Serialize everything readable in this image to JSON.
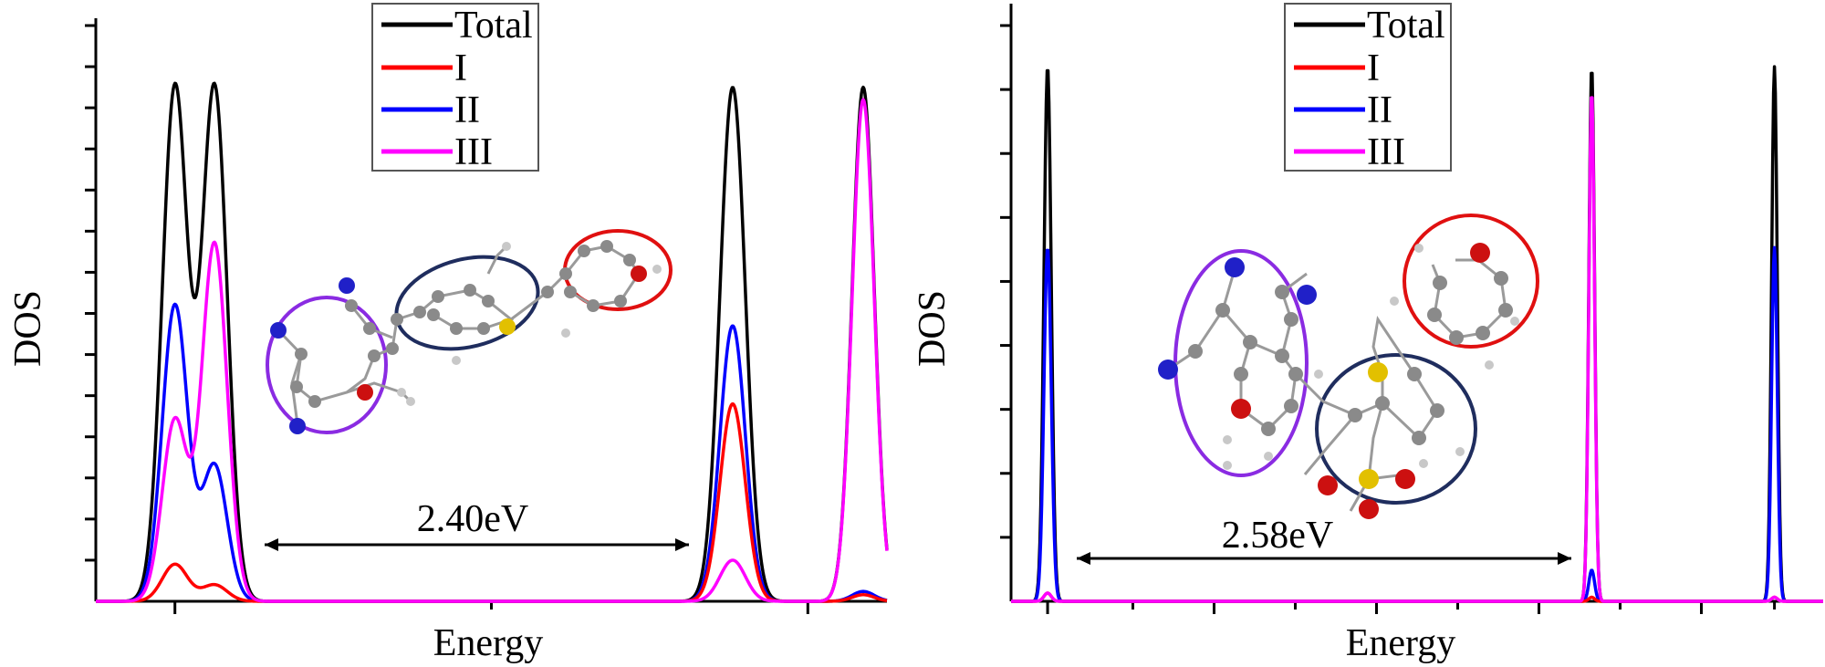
{
  "chart_data": [
    {
      "type": "line",
      "panel": "left",
      "xlabel": "Energy",
      "ylabel": "DOS",
      "xlim": [
        0,
        10
      ],
      "ylim": [
        0,
        7
      ],
      "legend": {
        "position": "top-center",
        "entries": [
          "Total",
          "I",
          "II",
          "III"
        ]
      },
      "annotation": {
        "text": "2.40eV",
        "from_x": 2.2,
        "to_x": 7.6
      },
      "series": [
        {
          "name": "Total",
          "color": "#000000",
          "peaks": [
            {
              "center": 1.0,
              "height": 6.25,
              "width": 0.16
            },
            {
              "center": 1.5,
              "height": 6.25,
              "width": 0.16
            },
            {
              "center": 8.05,
              "height": 6.25,
              "width": 0.16
            },
            {
              "center": 9.7,
              "height": 6.25,
              "width": 0.14
            }
          ]
        },
        {
          "name": "I",
          "color": "#ff0000",
          "peaks": [
            {
              "center": 1.0,
              "height": 0.45,
              "width": 0.16
            },
            {
              "center": 1.5,
              "height": 0.2,
              "width": 0.16
            },
            {
              "center": 8.05,
              "height": 2.4,
              "width": 0.16
            },
            {
              "center": 9.7,
              "height": 0.08,
              "width": 0.14
            }
          ]
        },
        {
          "name": "II",
          "color": "#0000ff",
          "peaks": [
            {
              "center": 1.0,
              "height": 3.6,
              "width": 0.16
            },
            {
              "center": 1.5,
              "height": 1.65,
              "width": 0.16
            },
            {
              "center": 8.05,
              "height": 3.35,
              "width": 0.16
            },
            {
              "center": 9.7,
              "height": 0.12,
              "width": 0.14
            }
          ]
        },
        {
          "name": "III",
          "color": "#ff00ff",
          "peaks": [
            {
              "center": 1.0,
              "height": 2.2,
              "width": 0.16
            },
            {
              "center": 1.5,
              "height": 4.35,
              "width": 0.16
            },
            {
              "center": 8.05,
              "height": 0.5,
              "width": 0.16
            },
            {
              "center": 9.7,
              "height": 6.1,
              "width": 0.14
            }
          ]
        }
      ]
    },
    {
      "type": "line",
      "panel": "right",
      "xlabel": "Energy",
      "ylabel": "DOS",
      "xlim": [
        0,
        10
      ],
      "ylim": [
        0,
        7
      ],
      "legend": {
        "position": "top-center",
        "entries": [
          "Total",
          "I",
          "II",
          "III"
        ]
      },
      "annotation": {
        "text": "2.58eV",
        "from_x": 0.8,
        "to_x": 6.9
      },
      "series": [
        {
          "name": "Total",
          "color": "#000000",
          "peaks": [
            {
              "center": 0.45,
              "height": 6.5,
              "width": 0.045
            },
            {
              "center": 7.15,
              "height": 6.5,
              "width": 0.035
            },
            {
              "center": 9.4,
              "height": 6.5,
              "width": 0.035
            }
          ]
        },
        {
          "name": "I",
          "color": "#ff0000",
          "peaks": [
            {
              "center": 0.45,
              "height": 0.1,
              "width": 0.045
            },
            {
              "center": 7.15,
              "height": 0.05,
              "width": 0.035
            },
            {
              "center": 9.4,
              "height": 0.05,
              "width": 0.035
            }
          ]
        },
        {
          "name": "II",
          "color": "#0000ff",
          "peaks": [
            {
              "center": 0.45,
              "height": 4.3,
              "width": 0.045
            },
            {
              "center": 7.15,
              "height": 0.38,
              "width": 0.035
            },
            {
              "center": 9.4,
              "height": 4.3,
              "width": 0.035
            }
          ]
        },
        {
          "name": "III",
          "color": "#ff00ff",
          "peaks": [
            {
              "center": 0.45,
              "height": 0.1,
              "width": 0.045
            },
            {
              "center": 7.15,
              "height": 6.2,
              "width": 0.035
            },
            {
              "center": 9.4,
              "height": 0.05,
              "width": 0.035
            }
          ]
        }
      ]
    }
  ],
  "molecules": {
    "left": {
      "atoms": [
        "N",
        "N",
        "N",
        "O",
        "S",
        "O",
        "H"
      ]
    },
    "right": {
      "atoms": [
        "N",
        "N",
        "N",
        "O",
        "S",
        "S",
        "O",
        "O",
        "O",
        "H"
      ]
    }
  }
}
